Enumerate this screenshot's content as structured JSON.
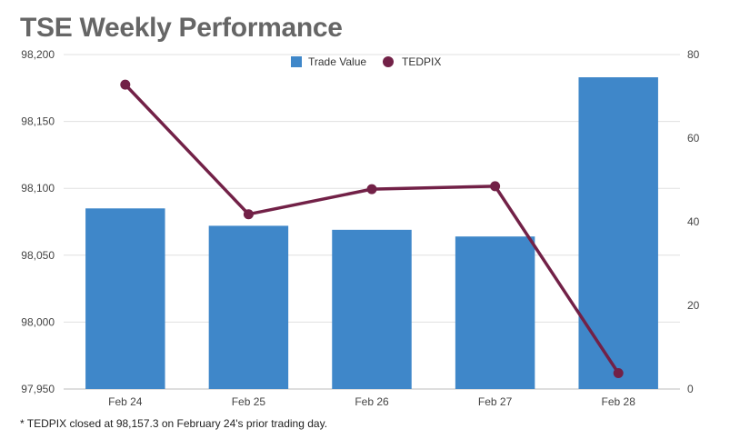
{
  "chart_data": {
    "title": "TSE Weekly Performance",
    "type": "bar+line",
    "categories": [
      "Feb 24",
      "Feb 25",
      "Feb 26",
      "Feb 27",
      "Feb 28"
    ],
    "series": [
      {
        "name": "Trade Value",
        "type": "bar",
        "axis": "left",
        "color": "#3f87c9",
        "values": [
          98085,
          98072,
          98069,
          98064,
          98183
        ]
      },
      {
        "name": "TEDPIX",
        "type": "line",
        "axis": "right",
        "color": "#722147",
        "values": [
          72.8,
          41.8,
          47.8,
          48.5,
          3.8
        ]
      }
    ],
    "left_axis": {
      "min": 97950,
      "max": 98200,
      "ticks": [
        97950,
        98000,
        98050,
        98100,
        98150,
        98200
      ],
      "tick_labels": [
        "97,950",
        "98,000",
        "98,050",
        "98,100",
        "98,150",
        "98,200"
      ]
    },
    "right_axis": {
      "min": 0,
      "max": 80,
      "ticks": [
        0,
        20,
        40,
        60,
        80
      ],
      "tick_labels": [
        "0",
        "20",
        "40",
        "60",
        "80"
      ]
    },
    "legend": {
      "position": "top-center",
      "items": [
        "Trade Value",
        "TEDPIX"
      ]
    },
    "grid": true,
    "footnote": "* TEDPIX closed at 98,157.3 on February 24's prior trading day."
  }
}
